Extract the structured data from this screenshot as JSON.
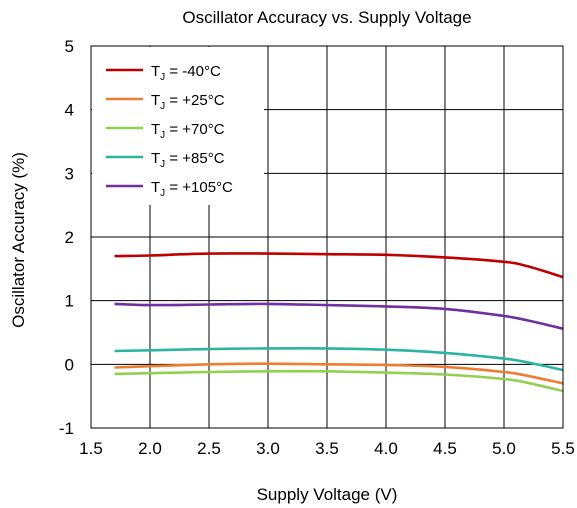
{
  "chart_data": {
    "type": "line",
    "title": "Oscillator Accuracy vs. Supply Voltage",
    "xlabel": "Supply Voltage (V)",
    "ylabel": "Oscillator Accuracy (%)",
    "xlim": [
      1.5,
      5.5
    ],
    "ylim": [
      -1,
      5
    ],
    "xticks": [
      "1.5",
      "2.0",
      "2.5",
      "3.0",
      "3.5",
      "4.0",
      "4.5",
      "5.0",
      "5.5"
    ],
    "yticks": [
      "-1",
      "0",
      "1",
      "2",
      "3",
      "4",
      "5"
    ],
    "grid": true,
    "legend_position": "top-left",
    "series": [
      {
        "name": "-40°C",
        "color": "#c00000",
        "x": [
          1.7,
          2.0,
          2.5,
          3.0,
          3.5,
          4.0,
          4.5,
          5.0,
          5.2,
          5.5
        ],
        "y": [
          1.7,
          1.71,
          1.74,
          1.74,
          1.73,
          1.72,
          1.68,
          1.61,
          1.54,
          1.37
        ]
      },
      {
        "name": "+25°C",
        "color": "#ed7d31",
        "x": [
          1.7,
          2.0,
          2.5,
          3.0,
          3.5,
          4.0,
          4.5,
          5.0,
          5.2,
          5.5
        ],
        "y": [
          -0.05,
          -0.03,
          0.0,
          0.01,
          0.0,
          -0.01,
          -0.04,
          -0.12,
          -0.18,
          -0.3
        ]
      },
      {
        "name": "+70°C",
        "color": "#92d050",
        "x": [
          1.7,
          2.0,
          2.5,
          3.0,
          3.5,
          4.0,
          4.5,
          5.0,
          5.2,
          5.5
        ],
        "y": [
          -0.15,
          -0.14,
          -0.12,
          -0.11,
          -0.11,
          -0.13,
          -0.16,
          -0.23,
          -0.29,
          -0.42
        ]
      },
      {
        "name": "+85°C",
        "color": "#2bb5a0",
        "x": [
          1.7,
          2.0,
          2.5,
          3.0,
          3.5,
          4.0,
          4.5,
          5.0,
          5.2,
          5.5
        ],
        "y": [
          0.21,
          0.22,
          0.24,
          0.25,
          0.25,
          0.23,
          0.18,
          0.09,
          0.03,
          -0.09
        ]
      },
      {
        "name": "+105°C",
        "color": "#7030a0",
        "x": [
          1.7,
          2.0,
          2.5,
          3.0,
          3.5,
          4.0,
          4.5,
          5.0,
          5.2,
          5.5
        ],
        "y": [
          0.95,
          0.93,
          0.94,
          0.95,
          0.93,
          0.91,
          0.87,
          0.76,
          0.69,
          0.56
        ]
      }
    ]
  }
}
